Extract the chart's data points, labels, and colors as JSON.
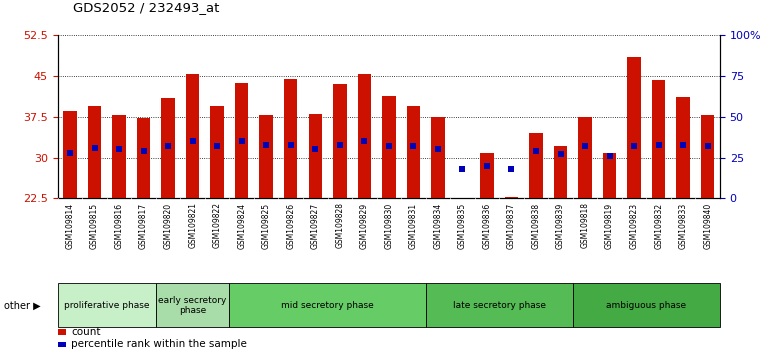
{
  "title": "GDS2052 / 232493_at",
  "samples": [
    "GSM109814",
    "GSM109815",
    "GSM109816",
    "GSM109817",
    "GSM109820",
    "GSM109821",
    "GSM109822",
    "GSM109824",
    "GSM109825",
    "GSM109826",
    "GSM109827",
    "GSM109828",
    "GSM109829",
    "GSM109830",
    "GSM109831",
    "GSM109834",
    "GSM109835",
    "GSM109836",
    "GSM109837",
    "GSM109838",
    "GSM109839",
    "GSM109818",
    "GSM109819",
    "GSM109823",
    "GSM109832",
    "GSM109833",
    "GSM109840"
  ],
  "count_values": [
    38.5,
    39.5,
    37.8,
    37.2,
    41.0,
    45.3,
    39.5,
    43.8,
    37.8,
    44.5,
    38.0,
    43.5,
    45.3,
    41.3,
    39.5,
    37.5,
    22.3,
    30.8,
    22.7,
    34.5,
    32.2,
    37.5,
    30.8,
    48.5,
    44.2,
    41.2,
    37.8
  ],
  "pct_right": [
    28,
    31,
    30,
    29,
    32,
    35,
    32,
    35,
    33,
    33,
    30,
    33,
    35,
    32,
    32,
    30,
    18,
    20,
    18,
    29,
    27,
    32,
    26,
    32,
    33,
    33,
    32
  ],
  "ylim_left": [
    22.5,
    52.5
  ],
  "ylim_right": [
    0,
    100
  ],
  "yticks_left": [
    22.5,
    30,
    37.5,
    45,
    52.5
  ],
  "yticks_right": [
    0,
    25,
    50,
    75,
    100
  ],
  "phases": [
    {
      "label": "proliferative phase",
      "start": 0,
      "end": 3,
      "color": "#c8f0c8"
    },
    {
      "label": "early secretory\nphase",
      "start": 4,
      "end": 6,
      "color": "#a8dca8"
    },
    {
      "label": "mid secretory phase",
      "start": 7,
      "end": 14,
      "color": "#66cc66"
    },
    {
      "label": "late secretory phase",
      "start": 15,
      "end": 20,
      "color": "#55bb55"
    },
    {
      "label": "ambiguous phase",
      "start": 21,
      "end": 26,
      "color": "#44aa44"
    }
  ],
  "bar_color": "#cc1100",
  "dot_color": "#0000bb",
  "xtick_bg_color": "#cccccc",
  "left_axis_color": "#cc1100",
  "right_axis_color": "#0000bb",
  "bar_width": 0.55,
  "dot_size": 4
}
